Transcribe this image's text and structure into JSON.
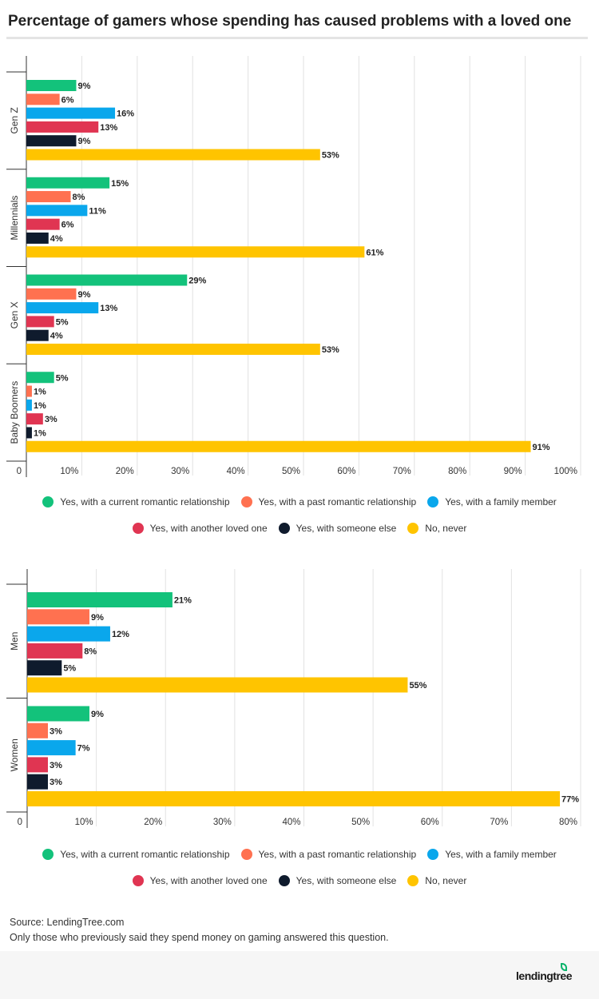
{
  "title": "Percentage of gamers whose spending has caused problems with a loved one",
  "legend": [
    {
      "label": "Yes, with a current romantic relationship",
      "color": "#13c27b"
    },
    {
      "label": "Yes, with a past romantic relationship",
      "color": "#ff7150"
    },
    {
      "label": "Yes, with a family member",
      "color": "#0aa7ec"
    },
    {
      "label": "Yes, with another loved one",
      "color": "#e03552"
    },
    {
      "label": "Yes, with someone else",
      "color": "#0f1b2d"
    },
    {
      "label": "No, never",
      "color": "#ffc400"
    }
  ],
  "chart_data": [
    {
      "type": "bar",
      "orientation": "horizontal",
      "categories": [
        "Gen Z",
        "Millennials",
        "Gen X",
        "Baby Boomers"
      ],
      "series": [
        {
          "name": "Yes, with a current romantic relationship",
          "values": [
            9,
            15,
            29,
            5
          ]
        },
        {
          "name": "Yes, with a past romantic relationship",
          "values": [
            6,
            8,
            9,
            1
          ]
        },
        {
          "name": "Yes, with a family member",
          "values": [
            16,
            11,
            13,
            1
          ]
        },
        {
          "name": "Yes, with another loved one",
          "values": [
            13,
            6,
            5,
            3
          ]
        },
        {
          "name": "Yes, with someone else",
          "values": [
            9,
            4,
            4,
            1
          ]
        },
        {
          "name": "No, never",
          "values": [
            53,
            61,
            53,
            91
          ]
        }
      ],
      "xlim": [
        0,
        100
      ],
      "xticks": [
        "0",
        "10%",
        "20%",
        "30%",
        "40%",
        "50%",
        "60%",
        "70%",
        "80%",
        "90%",
        "100%"
      ],
      "grid": true,
      "legend": "bottom"
    },
    {
      "type": "bar",
      "orientation": "horizontal",
      "categories": [
        "Men",
        "Women"
      ],
      "series": [
        {
          "name": "Yes, with a current romantic relationship",
          "values": [
            21,
            9
          ]
        },
        {
          "name": "Yes, with a past romantic relationship",
          "values": [
            9,
            3
          ]
        },
        {
          "name": "Yes, with a family member",
          "values": [
            12,
            7
          ]
        },
        {
          "name": "Yes, with another loved one",
          "values": [
            8,
            3
          ]
        },
        {
          "name": "Yes, with someone else",
          "values": [
            5,
            3
          ]
        },
        {
          "name": "No, never",
          "values": [
            55,
            77
          ]
        }
      ],
      "xlim": [
        0,
        80
      ],
      "xticks": [
        "0",
        "10%",
        "20%",
        "30%",
        "40%",
        "50%",
        "60%",
        "70%",
        "80%"
      ],
      "grid": true,
      "legend": "bottom"
    }
  ],
  "source": "Source: LendingTree.com",
  "note": "Only those who previously said they spend money on gaming answered this question.",
  "logo": "lendingtree"
}
